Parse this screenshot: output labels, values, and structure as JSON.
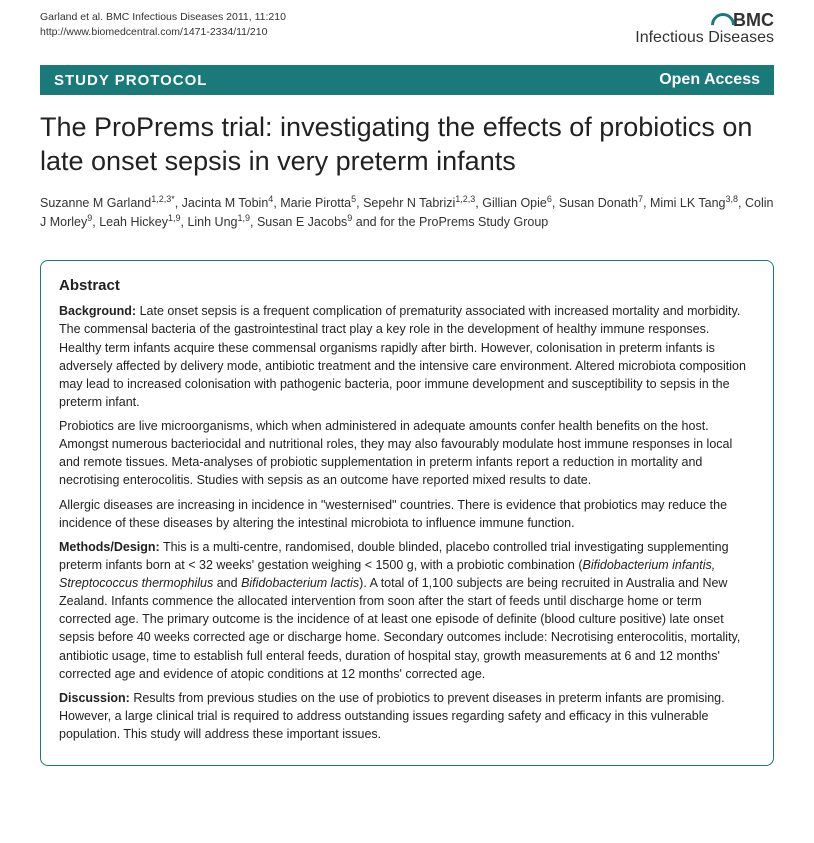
{
  "header": {
    "citation_line1": "Garland et al. BMC Infectious Diseases 2011, 11:210",
    "citation_line2": "http://www.biomedcentral.com/1471-2334/11/210",
    "journal_bmc": "BMC",
    "journal_name": "Infectious Diseases"
  },
  "banner": {
    "left": "STUDY PROTOCOL",
    "right": "Open Access"
  },
  "title": "The ProPrems trial: investigating the effects of probiotics on late onset sepsis in very preterm infants",
  "authors_html": "Suzanne M Garland<sup>1,2,3*</sup>, Jacinta M Tobin<sup>4</sup>, Marie Pirotta<sup>5</sup>, Sepehr N Tabrizi<sup>1,2,3</sup>, Gillian Opie<sup>6</sup>, Susan Donath<sup>7</sup>, Mimi LK Tang<sup>3,8</sup>, Colin J Morley<sup>9</sup>, Leah Hickey<sup>1,9</sup>, Linh Ung<sup>1,9</sup>, Susan E Jacobs<sup>9</sup> and for the ProPrems Study Group",
  "abstract": {
    "heading": "Abstract",
    "background_label": "Background:",
    "background_text": " Late onset sepsis is a frequent complication of prematurity associated with increased mortality and morbidity. The commensal bacteria of the gastrointestinal tract play a key role in the development of healthy immune responses. Healthy term infants acquire these commensal organisms rapidly after birth. However, colonisation in preterm infants is adversely affected by delivery mode, antibiotic treatment and the intensive care environment. Altered microbiota composition may lead to increased colonisation with pathogenic bacteria, poor immune development and susceptibility to sepsis in the preterm infant.",
    "background_p2": "Probiotics are live microorganisms, which when administered in adequate amounts confer health benefits on the host. Amongst numerous bacteriocidal and nutritional roles, they may also favourably modulate host immune responses in local and remote tissues. Meta-analyses of probiotic supplementation in preterm infants report a reduction in mortality and necrotising enterocolitis. Studies with sepsis as an outcome have reported mixed results to date.",
    "background_p3": "Allergic diseases are increasing in incidence in \"westernised\" countries. There is evidence that probiotics may reduce the incidence of these diseases by altering the intestinal microbiota to influence immune function.",
    "methods_label": "Methods/Design:",
    "methods_html": " This is a multi-centre, randomised, double blinded, placebo controlled trial investigating supplementing preterm infants born at &lt; 32 weeks' gestation weighing &lt; 1500 g, with a probiotic combination (<em>Bifidobacterium infantis, Streptococcus thermophilus</em> and <em>Bifidobacterium lactis</em>). A total of 1,100 subjects are being recruited in Australia and New Zealand. Infants commence the allocated intervention from soon after the start of feeds until discharge home or term corrected age. The primary outcome is the incidence of at least one episode of definite (blood culture positive) late onset sepsis before 40 weeks corrected age or discharge home. Secondary outcomes include: Necrotising enterocolitis, mortality, antibiotic usage, time to establish full enteral feeds, duration of hospital stay, growth measurements at 6 and 12 months' corrected age and evidence of atopic conditions at 12 months' corrected age.",
    "discussion_label": "Discussion:",
    "discussion_text": " Results from previous studies on the use of probiotics to prevent diseases in preterm infants are promising. However, a large clinical trial is required to address outstanding issues regarding safety and efficacy in this vulnerable population. This study will address these important issues."
  },
  "colors": {
    "teal": "#1a7a7a",
    "text": "#222222"
  }
}
